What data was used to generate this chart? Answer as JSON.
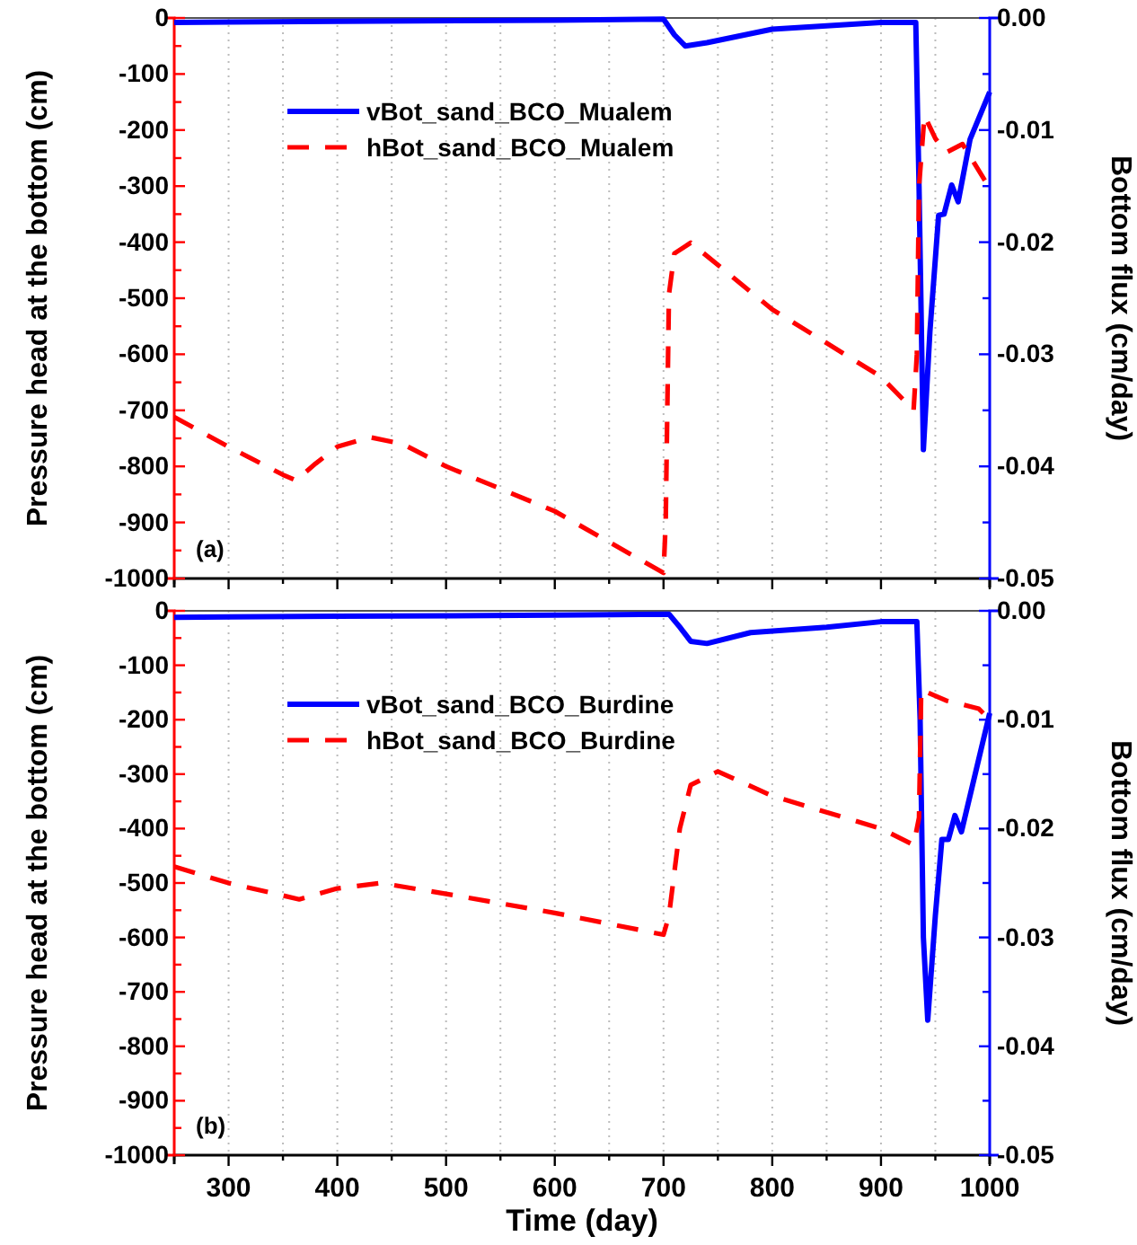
{
  "chart_data": [
    {
      "type": "line",
      "ylabel": "Pressure head at the bottom (cm)",
      "y2label": "Bottom flux (cm/day)",
      "annotations": [
        "(a)"
      ],
      "grid": "x",
      "legend": "top left",
      "tick_labels": "y",
      "xlim": [
        250,
        1000
      ],
      "xticks": [
        {
          "value": 250,
          "label": null
        },
        300,
        {
          "value": 350,
          "label": null
        },
        400,
        {
          "value": 450,
          "label": null
        },
        500,
        {
          "value": 550,
          "label": null
        },
        600,
        {
          "value": 650,
          "label": null
        },
        700,
        {
          "value": 750,
          "label": null
        },
        800,
        {
          "value": 850,
          "label": null
        },
        900,
        {
          "value": 950,
          "label": null
        },
        1000
      ],
      "ylim": [
        -1000,
        0
      ],
      "yticks": [
        -1000,
        {
          "value": -950,
          "label": null
        },
        -900,
        {
          "value": -850,
          "label": null
        },
        -800,
        {
          "value": -750,
          "label": null
        },
        -700,
        {
          "value": -650,
          "label": null
        },
        -600,
        {
          "value": -550,
          "label": null
        },
        -500,
        {
          "value": -450,
          "label": null
        },
        -400,
        {
          "value": -350,
          "label": null
        },
        -300,
        {
          "value": -250,
          "label": null
        },
        -200,
        {
          "value": -150,
          "label": null
        },
        -100,
        {
          "value": -50,
          "label": null
        },
        0
      ],
      "y2lim": [
        -0.05,
        0
      ],
      "y2ticks": [
        -0.05,
        {
          "value": -0.045,
          "label": null
        },
        -0.04,
        {
          "value": -0.035,
          "label": null
        },
        -0.03,
        {
          "value": -0.025,
          "label": null
        },
        -0.02,
        {
          "value": -0.015,
          "label": null
        },
        -0.01,
        {
          "value": -0.005,
          "label": null
        },
        {
          "value": 0,
          "label": "0.00"
        }
      ],
      "series": [
        {
          "name": "vBot_sand_BCO_Mualem",
          "color": "#0000ff",
          "axis": "y2",
          "line_style": "solid",
          "x": [
            250,
            400,
            600,
            700,
            710,
            720,
            740,
            800,
            900,
            932,
            935,
            939,
            945,
            953,
            958,
            965,
            971,
            982,
            1000
          ],
          "values": [
            -0.0004,
            -0.0003,
            -0.0002,
            -0.0001,
            -0.0015,
            -0.0025,
            -0.0022,
            -0.001,
            -0.0004,
            -0.0004,
            -0.015,
            -0.0385,
            -0.028,
            -0.0176,
            -0.0175,
            -0.0149,
            -0.0164,
            -0.0108,
            -0.0066
          ]
        },
        {
          "name": "hBot_sand_BCO_Mualem",
          "color": "#ff0000",
          "axis": "y",
          "line_style": "dashed",
          "x": [
            250,
            300,
            350,
            362,
            380,
            400,
            430,
            460,
            500,
            600,
            700,
            702,
            705,
            710,
            725,
            800,
            900,
            930,
            933,
            935,
            940,
            950,
            960,
            975,
            1000
          ],
          "values": [
            -712,
            -765,
            -815,
            -825,
            -795,
            -765,
            -748,
            -760,
            -800,
            -880,
            -990,
            -900,
            -493,
            -420,
            -401,
            -520,
            -640,
            -700,
            -600,
            -300,
            -174,
            -215,
            -240,
            -225,
            -304
          ]
        }
      ]
    },
    {
      "type": "line",
      "xlabel": "Time (day)",
      "ylabel": "Pressure head at the bottom (cm)",
      "y2label": "Bottom flux (cm/day)",
      "annotations": [
        "(b)"
      ],
      "grid": "x",
      "legend": "top left",
      "xlim": [
        250,
        1000
      ],
      "xticks": [
        {
          "value": 250,
          "label": null
        },
        300,
        {
          "value": 350,
          "label": null
        },
        400,
        {
          "value": 450,
          "label": null
        },
        500,
        {
          "value": 550,
          "label": null
        },
        600,
        {
          "value": 650,
          "label": null
        },
        700,
        {
          "value": 750,
          "label": null
        },
        800,
        {
          "value": 850,
          "label": null
        },
        900,
        {
          "value": 950,
          "label": null
        },
        1000
      ],
      "ylim": [
        -1000,
        0
      ],
      "yticks": [
        -1000,
        {
          "value": -950,
          "label": null
        },
        -900,
        {
          "value": -850,
          "label": null
        },
        -800,
        {
          "value": -750,
          "label": null
        },
        -700,
        {
          "value": -650,
          "label": null
        },
        -600,
        {
          "value": -550,
          "label": null
        },
        -500,
        {
          "value": -450,
          "label": null
        },
        -400,
        {
          "value": -350,
          "label": null
        },
        -300,
        {
          "value": -250,
          "label": null
        },
        -200,
        {
          "value": -150,
          "label": null
        },
        -100,
        {
          "value": -50,
          "label": null
        },
        0
      ],
      "y2lim": [
        -0.05,
        0
      ],
      "y2ticks": [
        -0.05,
        {
          "value": -0.045,
          "label": null
        },
        -0.04,
        {
          "value": -0.035,
          "label": null
        },
        -0.03,
        {
          "value": -0.025,
          "label": null
        },
        -0.02,
        {
          "value": -0.015,
          "label": null
        },
        -0.01,
        {
          "value": -0.005,
          "label": null
        },
        {
          "value": 0,
          "label": "0.00"
        }
      ],
      "series": [
        {
          "name": "vBot_sand_BCO_Burdine",
          "color": "#0000ff",
          "axis": "y2",
          "line_style": "solid",
          "x": [
            250,
            400,
            600,
            705,
            715,
            725,
            740,
            780,
            850,
            900,
            933,
            936,
            939,
            943,
            950,
            956,
            962,
            968,
            974,
            1000
          ],
          "values": [
            -0.0006,
            -0.0005,
            -0.0004,
            -0.0003,
            -0.0015,
            -0.0028,
            -0.003,
            -0.002,
            -0.0015,
            -0.001,
            -0.001,
            -0.01,
            -0.03,
            -0.0376,
            -0.028,
            -0.021,
            -0.021,
            -0.0188,
            -0.0203,
            -0.0094
          ]
        },
        {
          "name": "hBot_sand_BCO_Burdine",
          "color": "#ff0000",
          "axis": "y",
          "line_style": "dashed",
          "x": [
            250,
            300,
            365,
            400,
            440,
            500,
            600,
            700,
            705,
            715,
            725,
            750,
            800,
            900,
            930,
            935,
            937,
            960,
            975,
            990,
            1000
          ],
          "values": [
            -470,
            -500,
            -530,
            -510,
            -500,
            -520,
            -555,
            -595,
            -560,
            -400,
            -320,
            -295,
            -340,
            -400,
            -430,
            -380,
            -145,
            -165,
            -172,
            -180,
            -200
          ]
        }
      ]
    }
  ]
}
